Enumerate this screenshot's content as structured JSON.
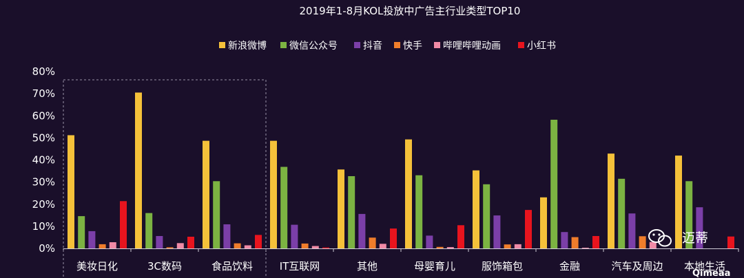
{
  "chart_data": {
    "type": "bar",
    "title": "2019年1-8月KOL投放中广告主行业类型TOP10",
    "categories": [
      "美妆日化",
      "3C数码",
      "食品饮料",
      "IT互联网",
      "其他",
      "母婴育儿",
      "服饰箱包",
      "金融",
      "汽车及周边",
      "本地生活"
    ],
    "y_ticks": [
      "0%",
      "10%",
      "20%",
      "30%",
      "40%",
      "50%",
      "60%",
      "70%",
      "80%"
    ],
    "ylim": [
      0,
      80
    ],
    "unit": "%",
    "grid": false,
    "legend_position": "top",
    "highlight_categories": [
      0,
      1,
      2
    ],
    "series": [
      {
        "name": "新浪微博",
        "color": "#f5c13a",
        "values": [
          51.2,
          70.5,
          48.7,
          48.7,
          35.7,
          49.3,
          35.3,
          23.1,
          42.9,
          42.0
        ]
      },
      {
        "name": "微信公众号",
        "color": "#7cb342",
        "values": [
          14.6,
          16.0,
          30.4,
          36.9,
          32.7,
          33.1,
          29.0,
          58.2,
          31.5,
          30.4
        ]
      },
      {
        "name": "抖音",
        "color": "#7b3fa8",
        "values": [
          7.8,
          5.6,
          10.9,
          10.7,
          15.6,
          5.8,
          14.9,
          7.4,
          15.8,
          18.6
        ]
      },
      {
        "name": "快手",
        "color": "#ef7d2b",
        "values": [
          1.9,
          0.5,
          2.3,
          2.2,
          4.9,
          0.7,
          1.8,
          5.1,
          5.5,
          0.0
        ]
      },
      {
        "name": "哔哩哔哩动画",
        "color": "#f08aa6",
        "values": [
          2.8,
          2.4,
          1.4,
          1.1,
          2.1,
          0.6,
          1.9,
          0.3,
          2.9,
          0.0
        ]
      },
      {
        "name": "小红书",
        "color": "#e8141e",
        "values": [
          21.4,
          5.3,
          6.1,
          0.4,
          9.0,
          10.5,
          17.4,
          5.6,
          0.0,
          5.4
        ]
      }
    ]
  },
  "watermark": {
    "brand": "迈蒂",
    "sub": "Qimeaa"
  }
}
